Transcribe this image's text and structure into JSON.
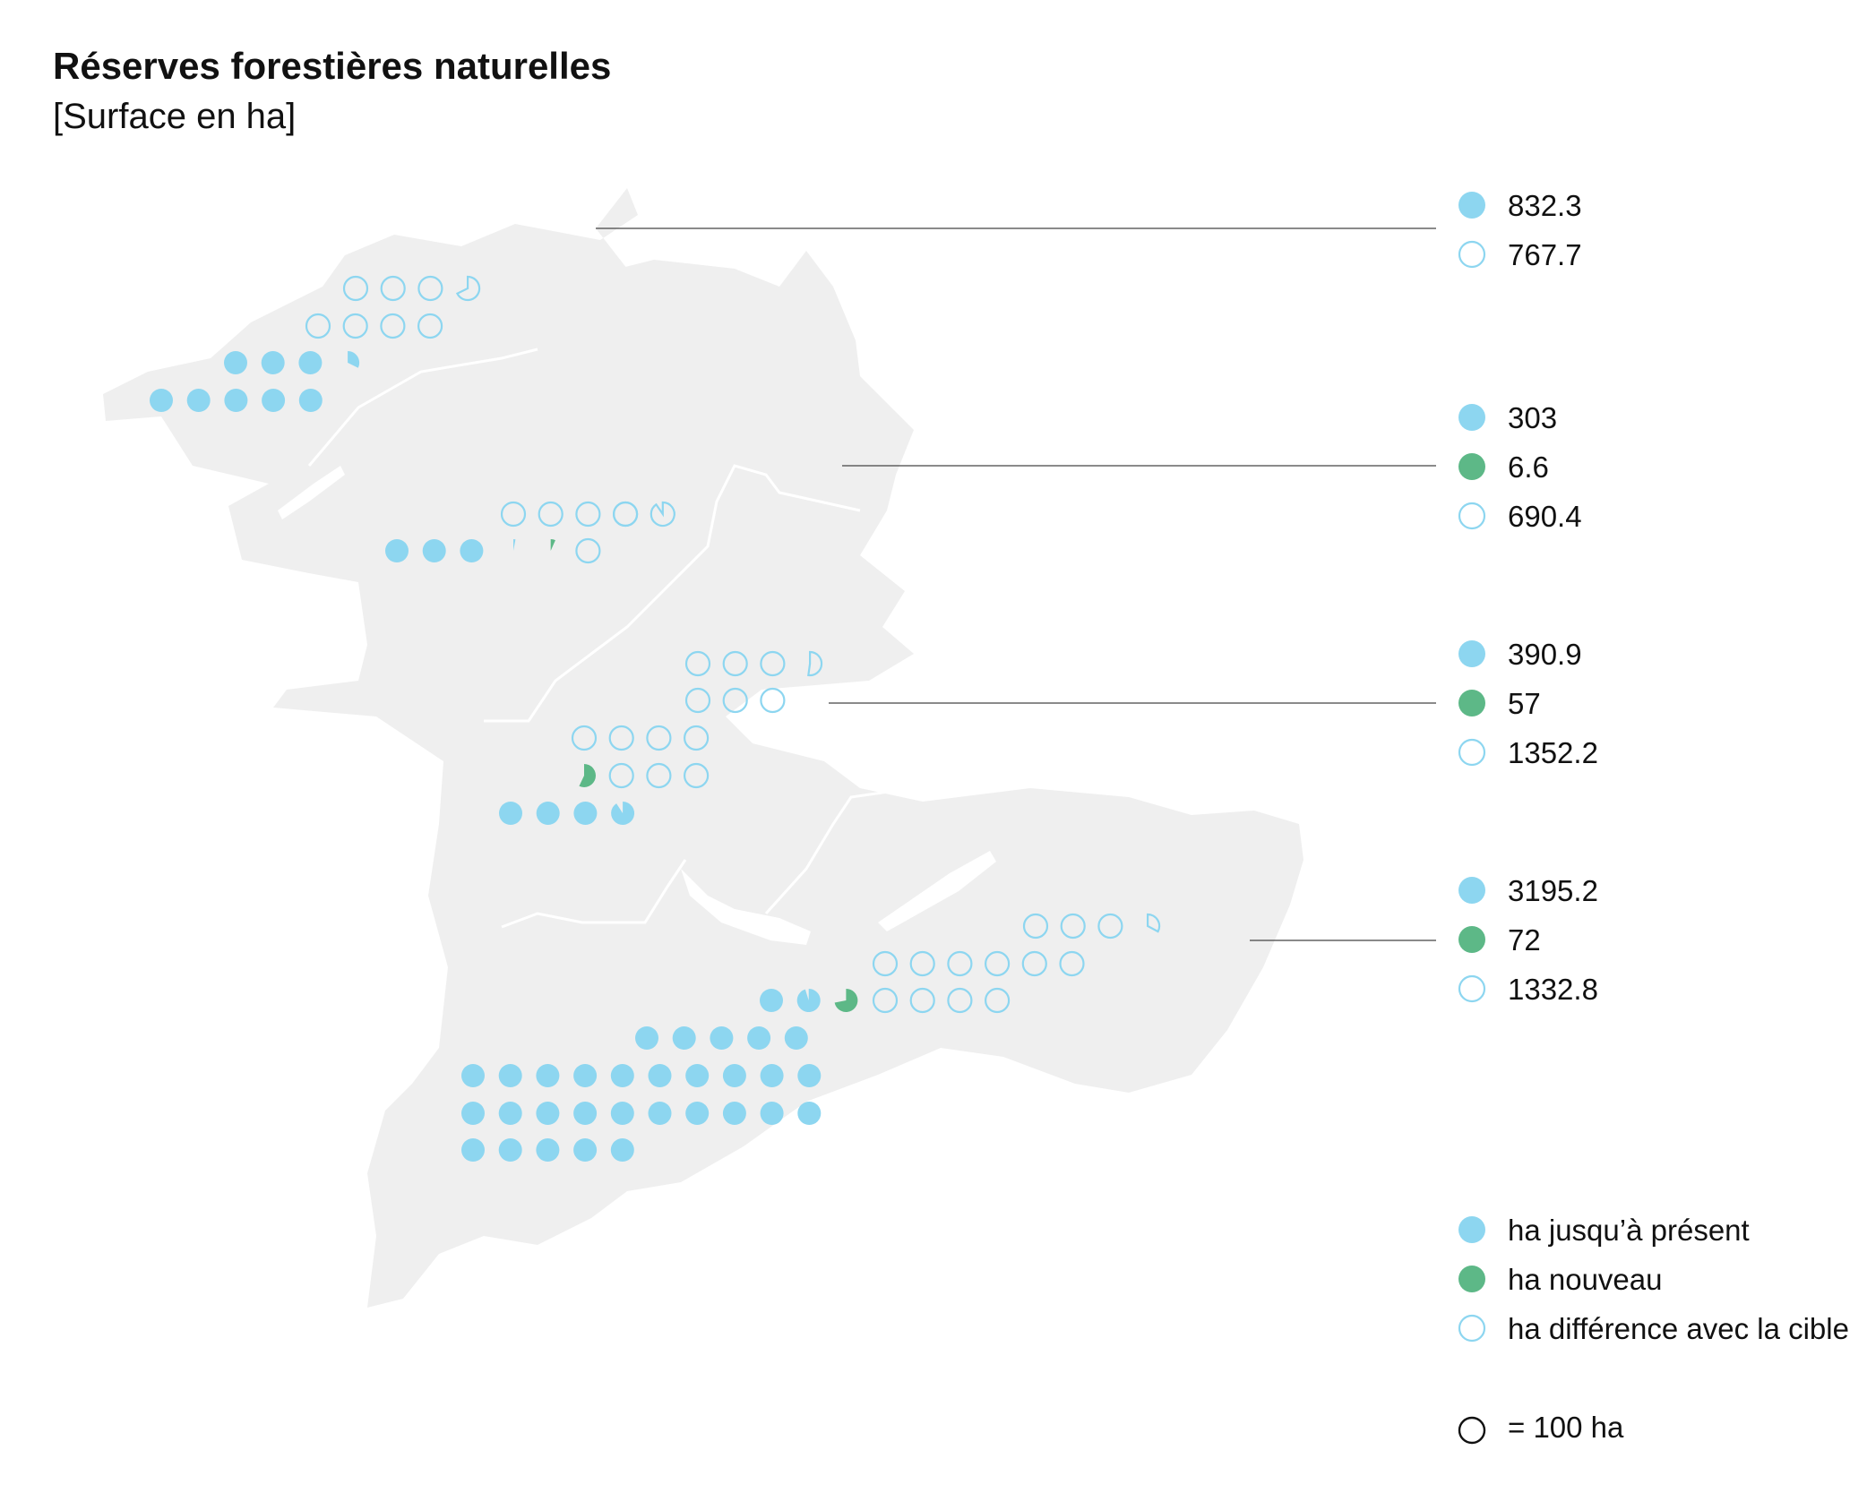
{
  "title": "Réserves forestières naturelles",
  "subtitle": "[Surface en ha]",
  "colors": {
    "existing": "#8dd6f0",
    "new": "#5db887",
    "target_gap": "#8dd6f0",
    "map": "#efefef",
    "border": "#ffffff",
    "leader": "#444444"
  },
  "chart_data": {
    "type": "map-dot-density",
    "unit_per_circle": 100,
    "regions": [
      {
        "existing": 832.3,
        "new": null,
        "gap": 767.7,
        "labels": [
          "832.3",
          "767.7"
        ]
      },
      {
        "existing": 303,
        "new": 6.6,
        "gap": 690.4,
        "labels": [
          "303",
          "6.6",
          "690.4"
        ]
      },
      {
        "existing": 390.9,
        "new": 57,
        "gap": 1352.2,
        "labels": [
          "390.9",
          "57",
          "1352.2"
        ]
      },
      {
        "existing": 3195.2,
        "new": 72,
        "gap": 1332.8,
        "labels": [
          "3195.2",
          "72",
          "1332.8"
        ]
      }
    ]
  },
  "legend": {
    "existing": "ha jusqu’à présent",
    "new": "ha nouveau",
    "gap": "ha différence avec la cible",
    "scale": "= 100 ha"
  }
}
